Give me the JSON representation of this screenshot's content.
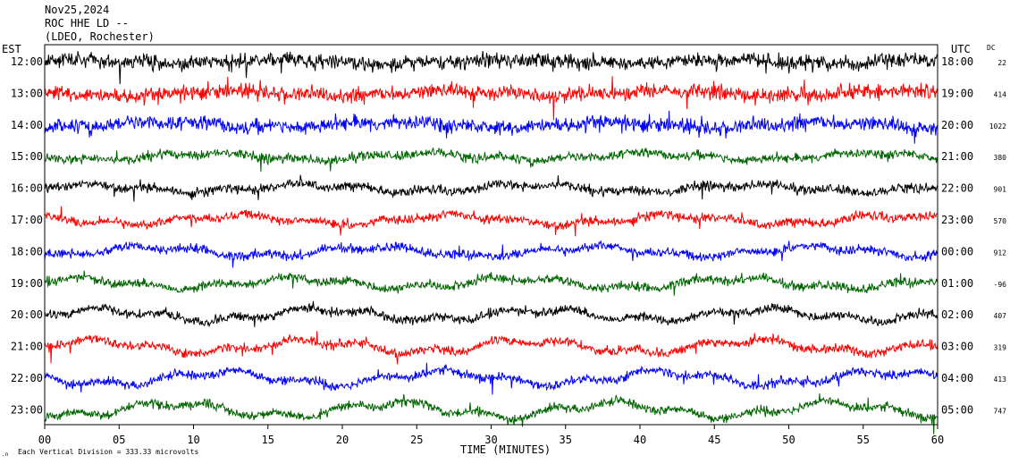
{
  "header": {
    "date": "Nov25,2024",
    "station": "ROC HHE LD --",
    "network": "(LDEO, Rochester)"
  },
  "left_axis_label": "EST",
  "right_axis_label": "UTC",
  "dc_label": "DC",
  "footer": {
    "scale_note": "Each Vertical Division = 333.33 microvolts",
    "time_label": "TIME (MINUTES)"
  },
  "colors": {
    "black": "#000000",
    "red": "#ff0000",
    "blue": "#0000ff",
    "green": "#006400",
    "frame": "#000000"
  },
  "chart_data": {
    "type": "line",
    "subtype": "helicorder",
    "xlabel": "TIME (MINUTES)",
    "xlim": [
      0,
      60
    ],
    "x_ticks": [
      "00",
      "05",
      "10",
      "15",
      "20",
      "25",
      "30",
      "35",
      "40",
      "45",
      "50",
      "55",
      "60"
    ],
    "color_cycle": [
      "black",
      "red",
      "blue",
      "green"
    ],
    "rows": [
      {
        "est": "12:00",
        "utc": "18:00",
        "dc": "22"
      },
      {
        "est": "13:00",
        "utc": "19:00",
        "dc": "414"
      },
      {
        "est": "14:00",
        "utc": "20:00",
        "dc": "1022"
      },
      {
        "est": "15:00",
        "utc": "21:00",
        "dc": "380"
      },
      {
        "est": "16:00",
        "utc": "22:00",
        "dc": "901"
      },
      {
        "est": "17:00",
        "utc": "23:00",
        "dc": "570"
      },
      {
        "est": "18:00",
        "utc": "00:00",
        "dc": "912"
      },
      {
        "est": "19:00",
        "utc": "01:00",
        "dc": "-96"
      },
      {
        "est": "20:00",
        "utc": "02:00",
        "dc": "407"
      },
      {
        "est": "21:00",
        "utc": "03:00",
        "dc": "319"
      },
      {
        "est": "22:00",
        "utc": "04:00",
        "dc": "413"
      },
      {
        "est": "23:00",
        "utc": "05:00",
        "dc": "747"
      }
    ]
  }
}
